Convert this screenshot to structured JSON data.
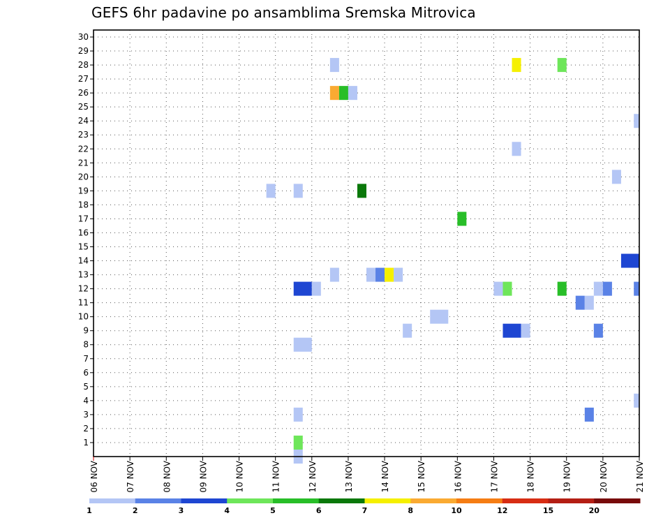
{
  "chart_data": {
    "type": "heatmap",
    "title": "GEFS 6hr padavine po ansamblima Sremska Mitrovica",
    "xlabel": "",
    "ylabel": "",
    "x_ticks": [
      "06 NOV",
      "07 NOV",
      "08 NOV",
      "09 NOV",
      "10 NOV",
      "11 NOV",
      "12 NOV",
      "13 NOV",
      "14 NOV",
      "15 NOV",
      "16 NOV",
      "17 NOV",
      "18 NOV",
      "19 NOV",
      "20 NOV",
      "21 NOV"
    ],
    "x_range_days": [
      0,
      15
    ],
    "y_ticks": [
      1,
      2,
      3,
      4,
      5,
      6,
      7,
      8,
      9,
      10,
      11,
      12,
      13,
      14,
      15,
      16,
      17,
      18,
      19,
      20,
      21,
      22,
      23,
      24,
      25,
      26,
      27,
      28,
      29,
      30
    ],
    "ylim": [
      0,
      30
    ],
    "grid": true,
    "legend": {
      "placement": "bottom",
      "levels": [
        1,
        2,
        3,
        4,
        5,
        6,
        7,
        8,
        10,
        12,
        15,
        20
      ],
      "labels": [
        "1",
        "2",
        "3",
        "4",
        "5",
        "6",
        "7",
        "8",
        "10",
        "12",
        "15",
        "20"
      ],
      "colors": [
        "#b4c6f5",
        "#5a82e6",
        "#1e46d2",
        "#6ee65a",
        "#28be28",
        "#0a780a",
        "#f5f000",
        "#faaa32",
        "#f57d14",
        "#d72d14",
        "#b41e14",
        "#780a0a"
      ]
    },
    "cells": [
      {
        "member": 0,
        "x": 5.5,
        "w": 0.25,
        "c": 1
      },
      {
        "member": 1,
        "x": 5.5,
        "w": 0.25,
        "c": 4
      },
      {
        "member": 3,
        "x": 5.5,
        "w": 0.25,
        "c": 1
      },
      {
        "member": 8,
        "x": 5.5,
        "w": 0.5,
        "c": 1
      },
      {
        "member": 12,
        "x": 5.5,
        "w": 0.5,
        "c": 3
      },
      {
        "member": 12,
        "x": 6.0,
        "w": 0.25,
        "c": 1
      },
      {
        "member": 19,
        "x": 4.75,
        "w": 0.25,
        "c": 1
      },
      {
        "member": 19,
        "x": 5.5,
        "w": 0.25,
        "c": 1
      },
      {
        "member": 13,
        "x": 6.5,
        "w": 0.25,
        "c": 1
      },
      {
        "member": 26,
        "x": 6.5,
        "w": 0.25,
        "c": 8
      },
      {
        "member": 26,
        "x": 6.75,
        "w": 0.25,
        "c": 5
      },
      {
        "member": 26,
        "x": 7.0,
        "w": 0.25,
        "c": 1
      },
      {
        "member": 28,
        "x": 6.5,
        "w": 0.25,
        "c": 1
      },
      {
        "member": 19,
        "x": 7.25,
        "w": 0.25,
        "c": 6
      },
      {
        "member": 13,
        "x": 7.5,
        "w": 0.25,
        "c": 1
      },
      {
        "member": 13,
        "x": 7.75,
        "w": 0.25,
        "c": 2
      },
      {
        "member": 13,
        "x": 8.0,
        "w": 0.25,
        "c": 7
      },
      {
        "member": 13,
        "x": 8.25,
        "w": 0.25,
        "c": 1
      },
      {
        "member": 9,
        "x": 8.5,
        "w": 0.25,
        "c": 1
      },
      {
        "member": 10,
        "x": 9.25,
        "w": 0.5,
        "c": 1
      },
      {
        "member": 17,
        "x": 10.0,
        "w": 0.25,
        "c": 5
      },
      {
        "member": 12,
        "x": 11.0,
        "w": 0.25,
        "c": 1
      },
      {
        "member": 12,
        "x": 11.25,
        "w": 0.25,
        "c": 4
      },
      {
        "member": 9,
        "x": 11.25,
        "w": 0.5,
        "c": 3
      },
      {
        "member": 9,
        "x": 11.75,
        "w": 0.25,
        "c": 1
      },
      {
        "member": 22,
        "x": 11.5,
        "w": 0.25,
        "c": 1
      },
      {
        "member": 28,
        "x": 11.5,
        "w": 0.25,
        "c": 7
      },
      {
        "member": 12,
        "x": 12.75,
        "w": 0.25,
        "c": 5
      },
      {
        "member": 28,
        "x": 12.75,
        "w": 0.25,
        "c": 4
      },
      {
        "member": 11,
        "x": 13.25,
        "w": 0.25,
        "c": 2
      },
      {
        "member": 11,
        "x": 13.5,
        "w": 0.25,
        "c": 1
      },
      {
        "member": 3,
        "x": 13.5,
        "w": 0.25,
        "c": 2
      },
      {
        "member": 12,
        "x": 13.75,
        "w": 0.25,
        "c": 1
      },
      {
        "member": 12,
        "x": 14.0,
        "w": 0.25,
        "c": 2
      },
      {
        "member": 9,
        "x": 13.75,
        "w": 0.25,
        "c": 2
      },
      {
        "member": 20,
        "x": 14.25,
        "w": 0.25,
        "c": 1
      },
      {
        "member": 14,
        "x": 14.5,
        "w": 0.5,
        "c": 3
      },
      {
        "member": 12,
        "x": 14.85,
        "w": 0.15,
        "c": 2
      },
      {
        "member": 24,
        "x": 14.85,
        "w": 0.15,
        "c": 1
      },
      {
        "member": 4,
        "x": 14.85,
        "w": 0.15,
        "c": 1
      }
    ]
  }
}
